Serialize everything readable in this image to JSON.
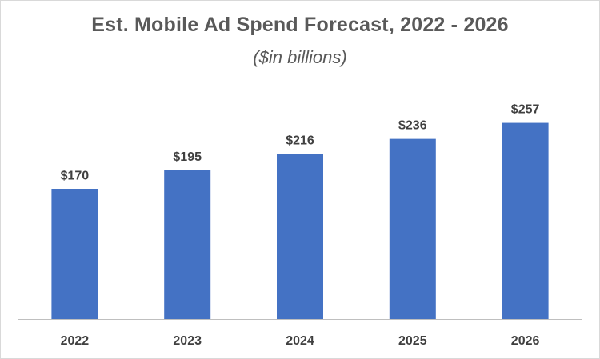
{
  "chart_data": {
    "type": "bar",
    "title": "Est. Mobile Ad Spend Forecast, 2022 - 2026",
    "subtitle": "($in billions)",
    "xlabel": "",
    "ylabel": "",
    "categories": [
      "2022",
      "2023",
      "2024",
      "2025",
      "2026"
    ],
    "values": [
      170,
      195,
      216,
      236,
      257
    ],
    "data_labels": [
      "$170",
      "$195",
      "$216",
      "$236",
      "$257"
    ],
    "ylim": [
      0,
      300
    ],
    "grid": false,
    "legend": "none",
    "bar_color": "#4472C4"
  }
}
